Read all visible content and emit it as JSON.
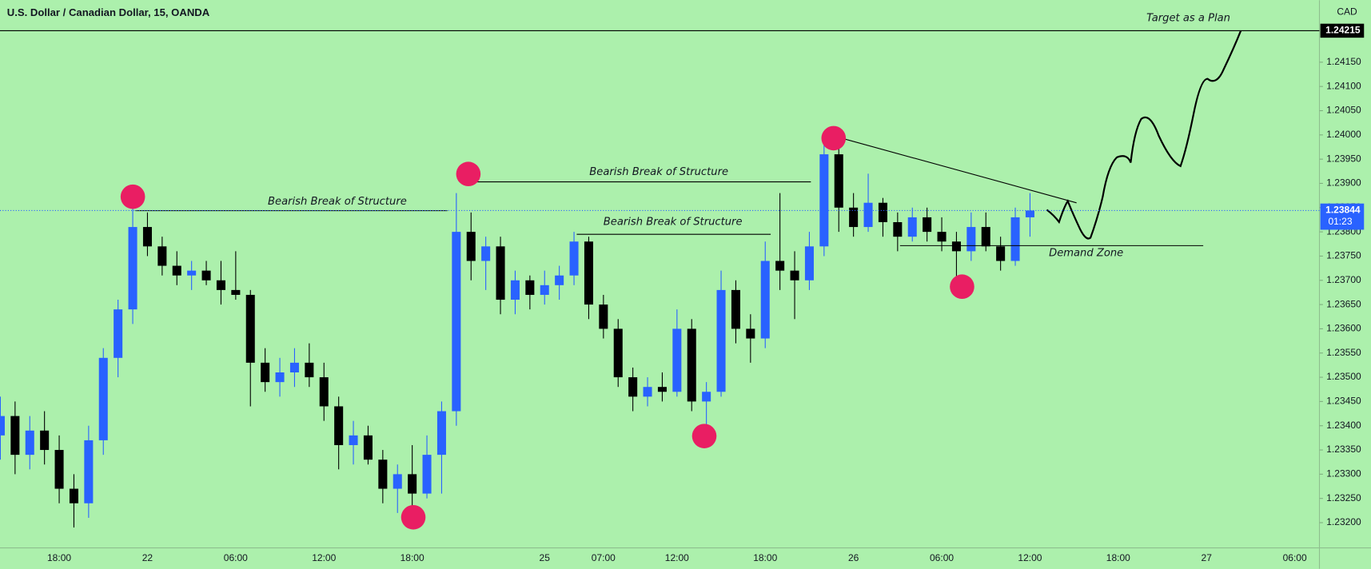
{
  "chart_data": {
    "type": "candlestick",
    "title": "U.S. Dollar / Canadian Dollar, 15, OANDA",
    "currency": "CAD",
    "up_color": "#2962ff",
    "down_color": "#000000",
    "categories": [
      null,
      null,
      null,
      null,
      "18:00",
      null,
      null,
      null,
      null,
      null,
      "22",
      null,
      null,
      null,
      null,
      null,
      "06:00",
      null,
      null,
      null,
      null,
      null,
      "12:00",
      null,
      null,
      null,
      null,
      null,
      "18:00",
      null,
      null,
      null,
      null,
      null,
      null,
      null,
      null,
      "25",
      null,
      null,
      null,
      "07:00",
      null,
      null,
      null,
      null,
      "12:00",
      null,
      null,
      null,
      null,
      null,
      "18:00",
      null,
      null,
      null,
      null,
      null,
      "26",
      null,
      null,
      null,
      null,
      null,
      "06:00",
      null,
      null,
      null,
      null,
      null,
      "12:00",
      null,
      null,
      null,
      null,
      null,
      "18:00",
      null,
      null,
      null,
      null,
      null,
      "27",
      null,
      null,
      null,
      null,
      null,
      "06:00",
      null
    ],
    "open": [
      1.2338,
      1.2342,
      1.2334,
      1.2339,
      1.2335,
      1.2327,
      1.2324,
      1.2337,
      1.2354,
      1.2364,
      1.2381,
      1.2377,
      1.2373,
      1.2371,
      1.2372,
      1.237,
      1.2368,
      1.2367,
      1.2353,
      1.2349,
      1.2351,
      1.2353,
      1.235,
      1.2344,
      1.2336,
      1.2338,
      1.2333,
      1.2327,
      1.233,
      1.2326,
      1.2334,
      1.2343,
      1.238,
      1.2374,
      1.2377,
      1.2366,
      1.237,
      1.2367,
      1.2369,
      1.2371,
      1.2378,
      1.2365,
      1.236,
      1.235,
      1.2346,
      1.2348,
      1.2347,
      1.236,
      1.2345,
      1.2347,
      1.2368,
      1.236,
      1.2358,
      1.2374,
      1.2372,
      1.237,
      1.2377,
      1.2396,
      1.2385,
      1.2381,
      1.2386,
      1.2382,
      1.2379,
      1.2383,
      1.238,
      1.2378,
      1.2376,
      1.2381,
      1.2377,
      1.2374,
      1.2383,
      null,
      null,
      null,
      null,
      null,
      null,
      null,
      null,
      null,
      null,
      null,
      null,
      null,
      null,
      null,
      null,
      null,
      null,
      null
    ],
    "high": [
      1.2346,
      1.2345,
      1.2342,
      1.2343,
      1.2338,
      1.233,
      1.234,
      1.2356,
      1.2366,
      1.2386,
      1.2384,
      1.2379,
      1.2376,
      1.2374,
      1.2374,
      1.2374,
      1.2376,
      1.2368,
      1.2356,
      1.2354,
      1.2356,
      1.2357,
      1.2353,
      1.2346,
      1.2341,
      1.234,
      1.2335,
      1.2332,
      1.2336,
      1.2338,
      1.2345,
      1.2388,
      1.2384,
      1.2379,
      1.2379,
      1.2372,
      1.2371,
      1.2372,
      1.2373,
      1.238,
      1.2379,
      1.2367,
      1.2362,
      1.2352,
      1.235,
      1.2351,
      1.2364,
      1.2362,
      1.2349,
      1.2372,
      1.237,
      1.2363,
      1.2378,
      1.2388,
      1.2376,
      1.238,
      1.24,
      1.2398,
      1.2388,
      1.2392,
      1.2387,
      1.2384,
      1.2385,
      1.2385,
      1.2383,
      1.238,
      1.2384,
      1.2384,
      1.2379,
      1.2385,
      1.2388,
      null,
      null,
      null,
      null,
      null,
      null,
      null,
      null,
      null,
      null,
      null,
      null,
      null,
      null,
      null,
      null,
      null,
      null,
      null
    ],
    "low": [
      1.2333,
      1.233,
      1.2331,
      1.2332,
      1.2324,
      1.2319,
      1.2321,
      1.2334,
      1.235,
      1.2361,
      1.2375,
      1.2371,
      1.2369,
      1.2368,
      1.2369,
      1.2365,
      1.2366,
      1.2344,
      1.2347,
      1.2346,
      1.2348,
      1.2348,
      1.2341,
      1.2331,
      1.2332,
      1.2332,
      1.2324,
      1.2322,
      1.2323,
      1.2325,
      1.2326,
      1.234,
      1.237,
      1.2368,
      1.2363,
      1.2363,
      1.2364,
      1.2365,
      1.2366,
      1.2369,
      1.2362,
      1.2358,
      1.2348,
      1.2343,
      1.2344,
      1.2345,
      1.2346,
      1.2343,
      1.2339,
      1.2346,
      1.2357,
      1.2353,
      1.2356,
      1.2368,
      1.2362,
      1.2368,
      1.2375,
      1.238,
      1.2379,
      1.238,
      1.2379,
      1.2376,
      1.2378,
      1.2378,
      1.2376,
      1.2368,
      1.2374,
      1.2376,
      1.2372,
      1.2373,
      1.2379,
      null,
      null,
      null,
      null,
      null,
      null,
      null,
      null,
      null,
      null,
      null,
      null,
      null,
      null,
      null,
      null,
      null,
      null,
      null
    ],
    "close": [
      1.2342,
      1.2334,
      1.2339,
      1.2335,
      1.2327,
      1.2324,
      1.2337,
      1.2354,
      1.2364,
      1.2381,
      1.2377,
      1.2373,
      1.2371,
      1.2372,
      1.237,
      1.2368,
      1.2367,
      1.2353,
      1.2349,
      1.2351,
      1.2353,
      1.235,
      1.2344,
      1.2336,
      1.2338,
      1.2333,
      1.2327,
      1.233,
      1.2326,
      1.2334,
      1.2343,
      1.238,
      1.2374,
      1.2377,
      1.2366,
      1.237,
      1.2367,
      1.2369,
      1.2371,
      1.2378,
      1.2365,
      1.236,
      1.235,
      1.2346,
      1.2348,
      1.2347,
      1.236,
      1.2345,
      1.2347,
      1.2368,
      1.236,
      1.2358,
      1.2374,
      1.2372,
      1.237,
      1.2377,
      1.2396,
      1.2385,
      1.2381,
      1.2386,
      1.2382,
      1.2379,
      1.2383,
      1.238,
      1.2378,
      1.2376,
      1.2381,
      1.2377,
      1.2374,
      1.2383,
      1.23844,
      null,
      null,
      null,
      null,
      null,
      null,
      null,
      null,
      null,
      null,
      null,
      null,
      null,
      null,
      null,
      null,
      null,
      null,
      null
    ],
    "ylim": [
      1.23148,
      1.24278
    ],
    "yticks": [
      {
        "value": 1.232,
        "label": "1.23200"
      },
      {
        "value": 1.2325,
        "label": "1.23250"
      },
      {
        "value": 1.233,
        "label": "1.23300"
      },
      {
        "value": 1.2335,
        "label": "1.23350"
      },
      {
        "value": 1.234,
        "label": "1.23400"
      },
      {
        "value": 1.2345,
        "label": "1.23450"
      },
      {
        "value": 1.235,
        "label": "1.23500"
      },
      {
        "value": 1.2355,
        "label": "1.23550"
      },
      {
        "value": 1.236,
        "label": "1.23600"
      },
      {
        "value": 1.2365,
        "label": "1.23650"
      },
      {
        "value": 1.237,
        "label": "1.23700"
      },
      {
        "value": 1.2375,
        "label": "1.23750"
      },
      {
        "value": 1.238,
        "label": "1.23800"
      },
      {
        "value": 1.2385,
        "label": "1.23850"
      },
      {
        "value": 1.239,
        "label": "1.23900"
      },
      {
        "value": 1.2395,
        "label": "1.23950"
      },
      {
        "value": 1.24,
        "label": "1.24000"
      },
      {
        "value": 1.2405,
        "label": "1.24050"
      },
      {
        "value": 1.241,
        "label": "1.24100"
      },
      {
        "value": 1.2415,
        "label": "1.24150"
      }
    ],
    "last_price": {
      "value": 1.23844,
      "label": "1.23844"
    },
    "countdown": "01:23",
    "target_line": {
      "value": 1.24215,
      "label": "1.24215"
    },
    "annotations": [
      "Bearish Break of Structure",
      "Bearish Break of Structure",
      "Bearish Break of Structure",
      "Demand Zone",
      "Target as a Plan"
    ]
  }
}
